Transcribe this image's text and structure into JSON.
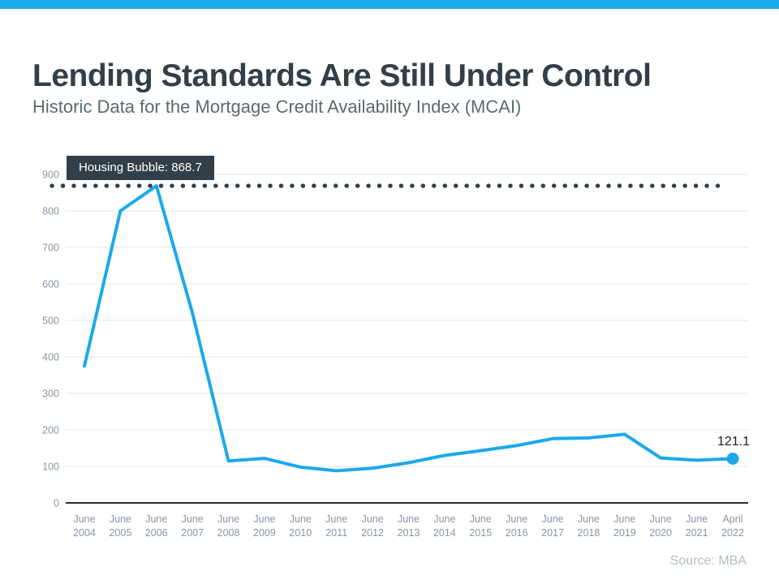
{
  "colors": {
    "accent_blue": "#1BA9EA",
    "dark_slate": "#333F48",
    "title_text": "#333E48",
    "subtitle_text": "#5D6972",
    "tick_label": "#8A95A3",
    "gridline": "#E3E5E7",
    "zero_axis": "#2D2D2D",
    "end_label_text": "#1A1E22",
    "source_text": "#B3BDC5"
  },
  "chart_data": {
    "type": "line",
    "title": "Lending Standards Are Still Under Control",
    "subtitle": "Historic Data for the Mortgage Credit Availability Index (MCAI)",
    "categories": [
      "June 2004",
      "June 2005",
      "June 2006",
      "June 2007",
      "June 2008",
      "June 2009",
      "June 2010",
      "June 2011",
      "June 2012",
      "June 2013",
      "June 2014",
      "June 2015",
      "June 2016",
      "June 2017",
      "June 2018",
      "June 2019",
      "June 2020",
      "June 2021",
      "April 2022"
    ],
    "series": [
      {
        "name": "Mortgage Credit Availability Index",
        "values": [
          375,
          800,
          868.7,
          520,
          115,
          122,
          98,
          88,
          95,
          110,
          130,
          143,
          157,
          176,
          178,
          188,
          123,
          117,
          121.1
        ]
      }
    ],
    "ylim": [
      0,
      900
    ],
    "yticks": [
      0,
      100,
      200,
      300,
      400,
      500,
      600,
      700,
      800,
      900
    ],
    "grid": "horizontal",
    "legend": "none",
    "reference_line": {
      "value": 868.7,
      "style": "dotted",
      "label": "Housing Bubble: 868.7"
    },
    "end_label": "121.1",
    "source": "Source: MBA"
  }
}
